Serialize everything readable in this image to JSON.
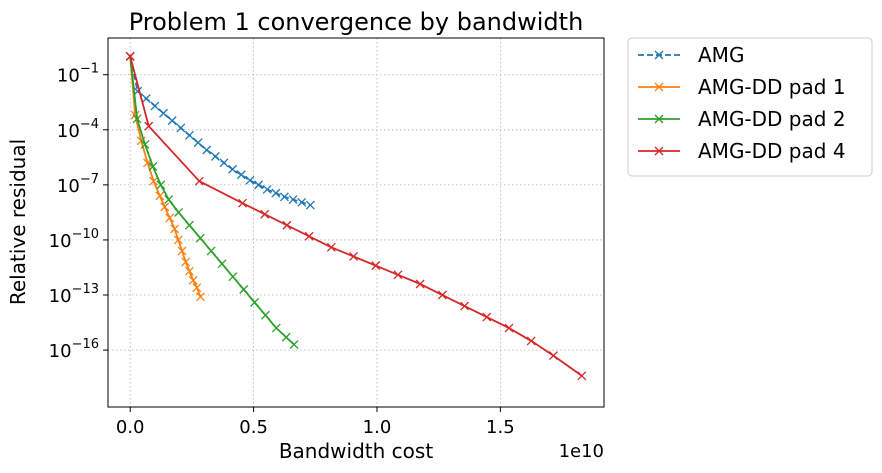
{
  "chart_data": {
    "type": "line",
    "title": "Problem 1 convergence by bandwidth",
    "xlabel": "Bandwidth cost",
    "ylabel": "Relative residual",
    "x_offset_label": "1e10",
    "x_scale_factor": 10000000000,
    "xlim": [
      -0.09,
      1.92
    ],
    "y_scale": "log",
    "ylim_log10": [
      -19.1,
      1.0
    ],
    "grid": true,
    "legend_position": "outside-top-right",
    "x_ticks": [
      {
        "value": 0.0,
        "label": "0.0"
      },
      {
        "value": 0.5,
        "label": "0.5"
      },
      {
        "value": 1.0,
        "label": "1.0"
      },
      {
        "value": 1.5,
        "label": "1.5"
      }
    ],
    "y_ticks": [
      {
        "exp": -1,
        "base": "10",
        "sup": "−1"
      },
      {
        "exp": -4,
        "base": "10",
        "sup": "−4"
      },
      {
        "exp": -7,
        "base": "10",
        "sup": "−7"
      },
      {
        "exp": -10,
        "base": "10",
        "sup": "−10"
      },
      {
        "exp": -13,
        "base": "10",
        "sup": "−13"
      },
      {
        "exp": -16,
        "base": "10",
        "sup": "−16"
      }
    ],
    "series": [
      {
        "name": "AMG",
        "color": "#1f77b4",
        "dashed": true,
        "x": [
          0.0,
          0.03,
          0.065,
          0.1,
          0.135,
          0.17,
          0.205,
          0.24,
          0.275,
          0.31,
          0.345,
          0.38,
          0.415,
          0.45,
          0.485,
          0.52,
          0.555,
          0.59,
          0.625,
          0.66,
          0.695,
          0.73
        ],
        "log10_y": [
          0.0,
          -1.9,
          -2.3,
          -2.7,
          -3.1,
          -3.5,
          -3.9,
          -4.3,
          -4.7,
          -5.1,
          -5.45,
          -5.8,
          -6.15,
          -6.45,
          -6.75,
          -7.0,
          -7.25,
          -7.45,
          -7.65,
          -7.8,
          -7.95,
          -8.1
        ]
      },
      {
        "name": "AMG-DD pad 1",
        "color": "#ff7f0e",
        "dashed": false,
        "x": [
          0.0,
          0.02,
          0.045,
          0.07,
          0.095,
          0.12,
          0.14,
          0.16,
          0.18,
          0.195,
          0.21,
          0.225,
          0.24,
          0.255,
          0.27,
          0.285
        ],
        "log10_y": [
          0.0,
          -3.2,
          -4.6,
          -5.8,
          -6.8,
          -7.6,
          -8.2,
          -8.8,
          -9.4,
          -10.0,
          -10.6,
          -11.2,
          -11.7,
          -12.2,
          -12.6,
          -13.1
        ]
      },
      {
        "name": "AMG-DD pad 2",
        "color": "#2ca02c",
        "dashed": false,
        "x": [
          0.0,
          0.028,
          0.06,
          0.092,
          0.124,
          0.156,
          0.196,
          0.24,
          0.284,
          0.328,
          0.372,
          0.416,
          0.46,
          0.504,
          0.548,
          0.592,
          0.632,
          0.664
        ],
        "log10_y": [
          0.0,
          -3.4,
          -4.8,
          -6.0,
          -7.0,
          -7.8,
          -8.5,
          -9.2,
          -9.9,
          -10.6,
          -11.3,
          -12.0,
          -12.7,
          -13.4,
          -14.1,
          -14.8,
          -15.3,
          -15.7
        ]
      },
      {
        "name": "AMG-DD pad 4",
        "color": "#d62728",
        "dashed": false,
        "x": [
          0.0,
          0.075,
          0.28,
          0.455,
          0.545,
          0.635,
          0.725,
          0.815,
          0.905,
          0.995,
          1.085,
          1.175,
          1.265,
          1.355,
          1.445,
          1.535,
          1.625,
          1.715,
          1.83
        ],
        "log10_y": [
          0.0,
          -3.8,
          -6.8,
          -8.0,
          -8.6,
          -9.2,
          -9.8,
          -10.4,
          -10.9,
          -11.4,
          -11.9,
          -12.4,
          -13.0,
          -13.6,
          -14.2,
          -14.8,
          -15.5,
          -16.3,
          -17.4
        ]
      }
    ]
  }
}
